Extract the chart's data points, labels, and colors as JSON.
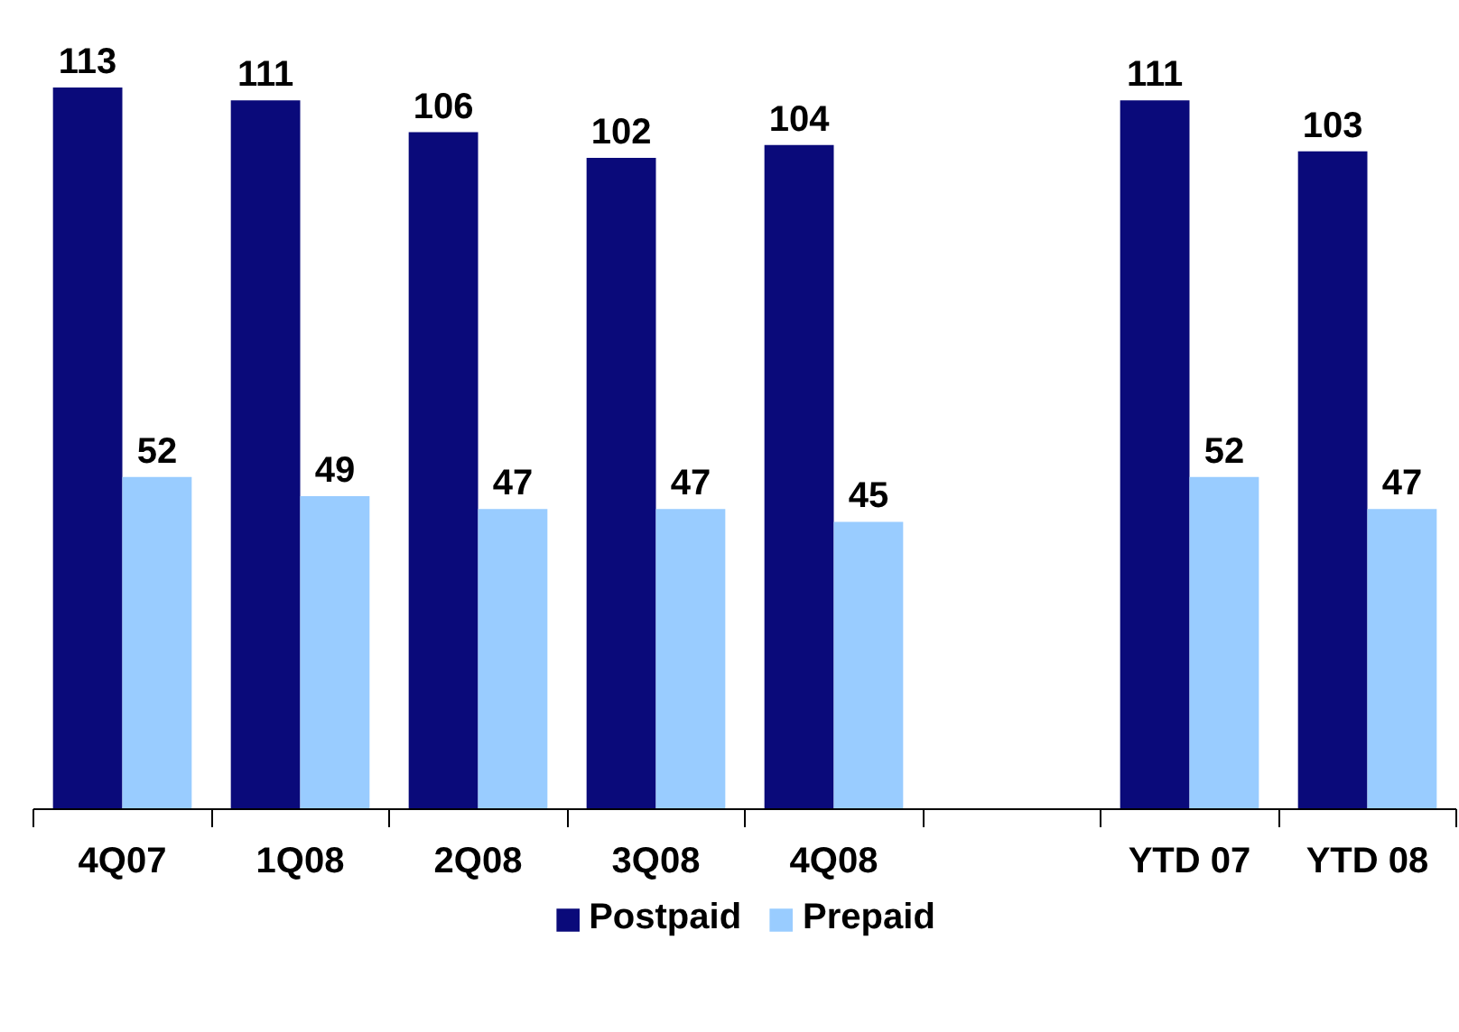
{
  "chart_data": {
    "type": "bar",
    "categories": [
      "4Q07",
      "1Q08",
      "2Q08",
      "3Q08",
      "4Q08",
      null,
      "YTD 07",
      "YTD 08"
    ],
    "series": [
      {
        "name": "Postpaid",
        "color": "#0a0a7a",
        "values": [
          113,
          111,
          106,
          102,
          104,
          null,
          111,
          103
        ]
      },
      {
        "name": "Prepaid",
        "color": "#99ccff",
        "values": [
          52,
          49,
          47,
          47,
          45,
          null,
          52,
          47
        ]
      }
    ],
    "data_labels": true,
    "legend": "bottom",
    "grid": false
  }
}
